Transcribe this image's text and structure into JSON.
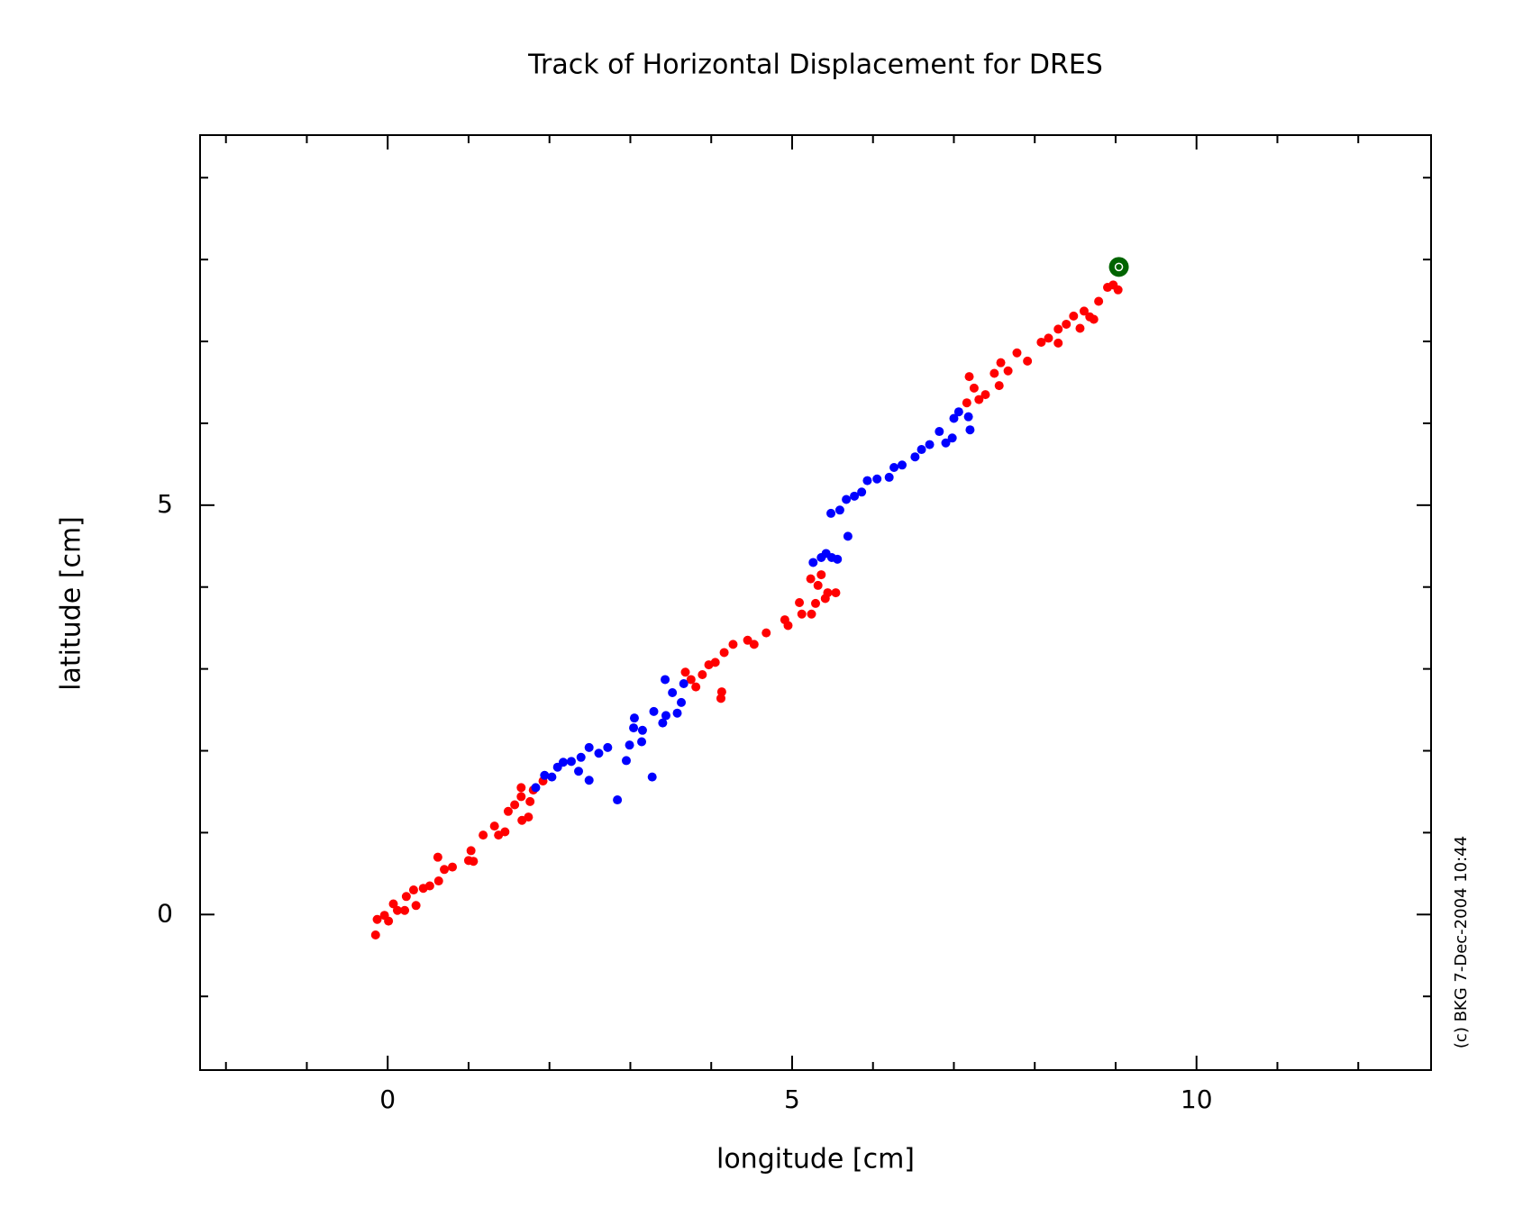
{
  "chart_data": {
    "type": "scatter",
    "title": "Track of Horizontal Displacement for DRES",
    "x_label": "longitude [cm]",
    "y_label": "latitude [cm]",
    "note": "(c) BKG 7-Dec-2004 10:44",
    "xlim": [
      -2.32,
      12.9
    ],
    "ylim": [
      -1.9,
      9.52
    ],
    "xticks": [
      0,
      5,
      10
    ],
    "yticks": [
      0,
      5
    ],
    "xticks_minor": [
      -2,
      -1,
      1,
      2,
      3,
      4,
      6,
      7,
      8,
      9,
      11,
      12
    ],
    "yticks_minor": [
      -1,
      1,
      2,
      3,
      4,
      6,
      7,
      8,
      9
    ],
    "series": [
      {
        "color": "#ff0000",
        "x": [
          -0.15,
          -0.13,
          -0.04,
          0.01,
          0.07,
          0.12,
          0.21,
          0.23,
          0.32,
          0.35,
          0.44,
          0.52,
          0.62,
          0.63,
          0.7,
          0.8,
          1.0,
          1.03,
          1.06,
          1.18,
          1.32,
          1.37,
          1.45,
          1.49,
          1.57,
          1.65,
          1.66,
          1.74,
          1.65,
          1.76,
          1.8,
          1.92,
          3.68,
          3.75,
          3.81,
          3.89,
          3.97,
          4.05,
          4.12,
          4.13,
          4.16,
          4.27,
          4.45,
          4.53,
          4.68,
          4.91,
          4.95,
          5.09,
          5.12,
          5.24,
          5.29,
          5.23,
          5.36,
          5.32,
          5.41,
          5.44,
          5.54,
          7.19,
          7.16,
          7.25,
          7.31,
          7.39,
          7.5,
          7.56,
          7.58,
          7.67,
          7.78,
          7.91,
          8.08,
          8.17,
          8.29,
          8.29,
          8.39,
          8.48,
          8.56,
          8.61,
          8.68,
          8.73,
          8.79,
          8.9,
          8.97,
          9.03
        ],
        "values": [
          -0.25,
          -0.06,
          -0.01,
          -0.08,
          0.13,
          0.05,
          0.05,
          0.22,
          0.3,
          0.11,
          0.32,
          0.35,
          0.7,
          0.41,
          0.55,
          0.58,
          0.66,
          0.78,
          0.65,
          0.97,
          1.08,
          0.97,
          1.01,
          1.26,
          1.34,
          1.44,
          1.15,
          1.19,
          1.55,
          1.38,
          1.52,
          1.63,
          2.96,
          2.87,
          2.78,
          2.93,
          3.05,
          3.08,
          2.64,
          2.72,
          3.2,
          3.3,
          3.35,
          3.3,
          3.44,
          3.6,
          3.53,
          3.81,
          3.67,
          3.67,
          3.8,
          4.1,
          4.15,
          4.02,
          3.86,
          3.93,
          3.93,
          6.57,
          6.25,
          6.43,
          6.29,
          6.35,
          6.61,
          6.46,
          6.74,
          6.64,
          6.86,
          6.76,
          6.99,
          7.04,
          7.15,
          6.98,
          7.21,
          7.31,
          7.16,
          7.37,
          7.3,
          7.27,
          7.49,
          7.66,
          7.69,
          7.63
        ]
      },
      {
        "color": "#0000ff",
        "x": [
          1.83,
          1.94,
          2.03,
          2.1,
          2.17,
          2.27,
          2.36,
          2.39,
          2.49,
          2.49,
          2.61,
          2.72,
          2.84,
          2.95,
          2.99,
          3.04,
          3.05,
          3.15,
          3.14,
          3.27,
          3.29,
          3.4,
          3.44,
          3.43,
          3.52,
          3.58,
          3.63,
          3.66,
          5.26,
          5.36,
          5.42,
          5.49,
          5.56,
          5.69,
          5.48,
          5.59,
          5.67,
          5.77,
          5.86,
          5.93,
          6.05,
          6.2,
          6.26,
          6.36,
          6.52,
          6.6,
          6.7,
          6.82,
          6.9,
          6.98,
          7.0,
          7.06,
          7.18,
          7.2
        ],
        "values": [
          1.55,
          1.7,
          1.68,
          1.8,
          1.86,
          1.87,
          1.75,
          1.92,
          2.04,
          1.64,
          1.97,
          2.04,
          1.4,
          1.88,
          2.07,
          2.28,
          2.4,
          2.25,
          2.11,
          1.68,
          2.48,
          2.34,
          2.43,
          2.87,
          2.71,
          2.46,
          2.59,
          2.82,
          4.3,
          4.36,
          4.41,
          4.36,
          4.34,
          4.62,
          4.9,
          4.94,
          5.07,
          5.11,
          5.16,
          5.3,
          5.32,
          5.34,
          5.46,
          5.49,
          5.59,
          5.68,
          5.74,
          5.9,
          5.76,
          5.82,
          6.06,
          6.14,
          6.08,
          5.92
        ]
      },
      {
        "color": "#006400",
        "x": [
          9.04
        ],
        "values": [
          7.91
        ]
      }
    ]
  }
}
